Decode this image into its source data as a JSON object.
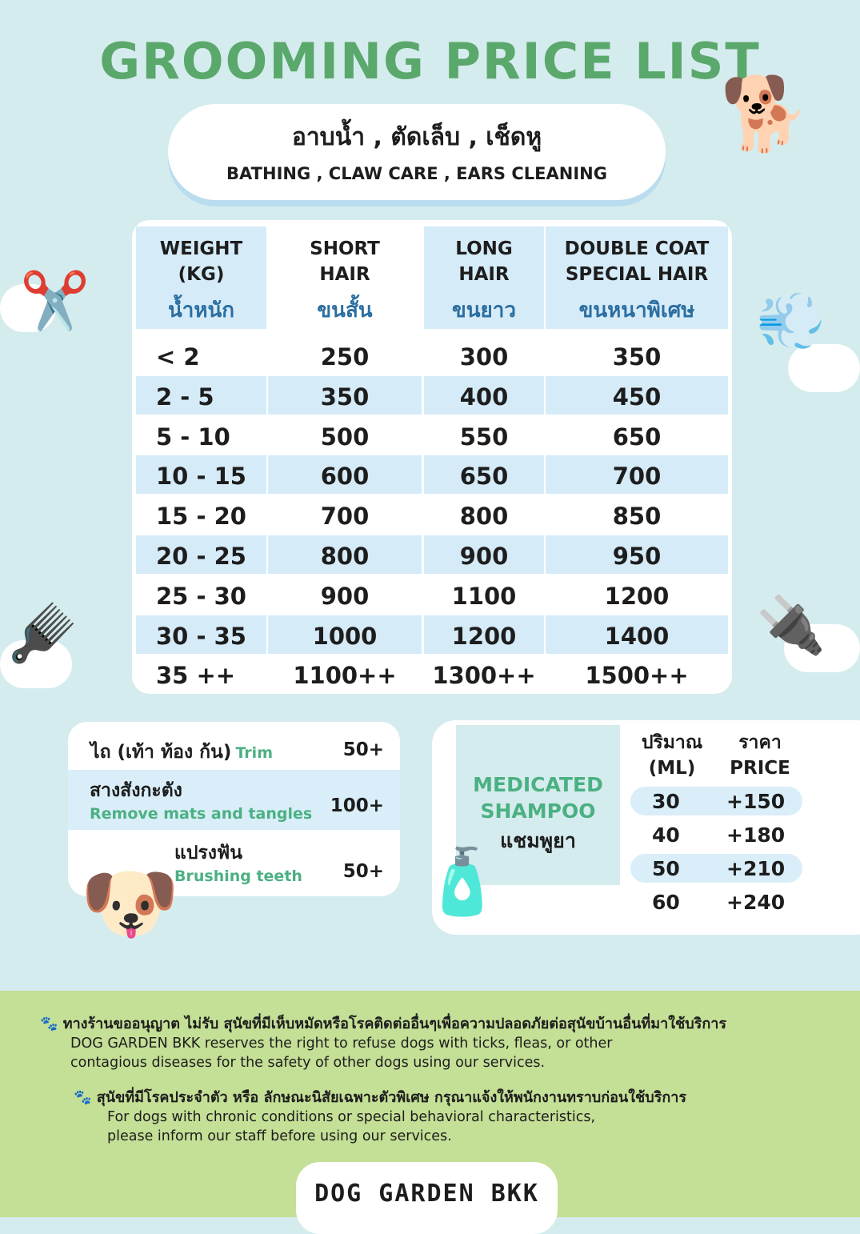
{
  "title": "GROOMING PRICE LIST",
  "banner": {
    "th": "อาบน้ำ , ตัดเล็บ , เช็ดหู",
    "en": "BATHING , CLAW CARE , EARS CLEANING"
  },
  "table": {
    "headers": [
      {
        "en1": "WEIGHT",
        "en2": "(KG)",
        "th": "น้ำหนัก"
      },
      {
        "en1": "SHORT",
        "en2": "HAIR",
        "th": "ขนสั้น"
      },
      {
        "en1": "LONG",
        "en2": "HAIR",
        "th": "ขนยาว"
      },
      {
        "en1": "DOUBLE COAT",
        "en2": "SPECIAL HAIR",
        "th": "ขนหนาพิเศษ"
      }
    ],
    "rows": [
      [
        "< 2",
        "250",
        "300",
        "350"
      ],
      [
        "2   -  5",
        "350",
        "400",
        "450"
      ],
      [
        "5   -  10",
        "500",
        "550",
        "650"
      ],
      [
        "10  -  15",
        "600",
        "650",
        "700"
      ],
      [
        "15  -  20",
        "700",
        "800",
        "850"
      ],
      [
        "20 -  25",
        "800",
        "900",
        "950"
      ],
      [
        "25 -  30",
        "900",
        "1100",
        "1200"
      ],
      [
        "30 -  35",
        "1000",
        "1200",
        "1400"
      ],
      [
        "35 ++",
        "1100++",
        "1300++",
        "1500++"
      ]
    ]
  },
  "extras": [
    {
      "th": "ไถ (เท้า ท้อง ก้น)",
      "en": "Trim",
      "price": "50+"
    },
    {
      "th": "สางสังกะตัง",
      "en": "Remove mats and tangles",
      "price": "100+"
    },
    {
      "th": "แปรงฟัน",
      "en": "Brushing teeth",
      "price": "50+"
    }
  ],
  "shampoo": {
    "title1": "MEDICATED",
    "title2": "SHAMPOO",
    "th": "แชมพูยา",
    "col1_th": "ปริมาณ",
    "col1_en": "(ML)",
    "col2_th": "ราคา",
    "col2_en": "PRICE",
    "rows": [
      [
        "30",
        "+150"
      ],
      [
        "40",
        "+180"
      ],
      [
        "50",
        "+210"
      ],
      [
        "60",
        "+240"
      ]
    ]
  },
  "notes": [
    {
      "th": "ทางร้านขออนุญาต ไม่รับ สุนัขที่มีเห็บหมัดหรือโรคติดต่ออื่นๆเพื่อความปลอดภัยต่อสุนัขบ้านอื่นที่มาใช้บริการ",
      "en1": "DOG GARDEN BKK reserves the right to refuse dogs with ticks, fleas, or other",
      "en2": "contagious diseases for the safety of other dogs using our services."
    },
    {
      "th": "สุนัขที่มีโรคประจำตัว หรือ ลักษณะนิสัยเฉพาะตัวพิเศษ กรุณาแจ้งให้พนักงานทราบก่อนใช้บริการ",
      "en1": "For dogs with chronic conditions or special behavioral characteristics,",
      "en2": "please inform our staff before using our services."
    }
  ],
  "logo": "DOG GARDEN BKK"
}
